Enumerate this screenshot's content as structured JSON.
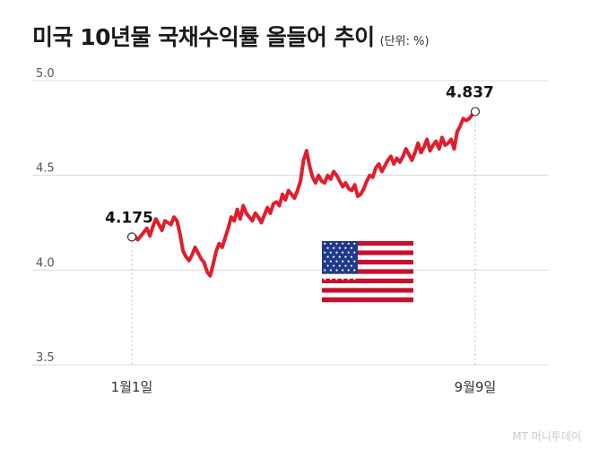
{
  "header": {
    "title": "미국 10년물 국채수익률 올들어 추이",
    "unit": "(단위: %)"
  },
  "credit": "MT 머니투데이",
  "colors": {
    "line": "#e01e2b",
    "grid": "#d9d9d9",
    "guide": "#bdbdbd"
  },
  "chart_data": {
    "type": "line",
    "title": "미국 10년물 국채수익률 올들어 추이",
    "ylim": [
      3.5,
      5.0
    ],
    "yticks": [
      "5.0",
      "4.5",
      "4.0",
      "3.5"
    ],
    "xticks": [
      "1월1일",
      "9월9일"
    ],
    "grid": true,
    "annotations": [
      {
        "label": "4.175",
        "value": 4.175,
        "position": "start"
      },
      {
        "label": "4.837",
        "value": 4.837,
        "position": "end"
      }
    ],
    "series": [
      {
        "values": [
          4.175,
          4.18,
          4.16,
          4.18,
          4.2,
          4.22,
          4.18,
          4.23,
          4.27,
          4.24,
          4.21,
          4.26,
          4.25,
          4.24,
          4.28,
          4.26,
          4.19,
          4.1,
          4.07,
          4.05,
          4.08,
          4.12,
          4.09,
          4.06,
          4.04,
          3.99,
          3.97,
          4.03,
          4.1,
          4.14,
          4.12,
          4.17,
          4.22,
          4.28,
          4.26,
          4.32,
          4.27,
          4.34,
          4.3,
          4.28,
          4.26,
          4.3,
          4.28,
          4.25,
          4.29,
          4.33,
          4.3,
          4.35,
          4.36,
          4.34,
          4.4,
          4.37,
          4.42,
          4.4,
          4.38,
          4.42,
          4.47,
          4.58,
          4.63,
          4.55,
          4.49,
          4.46,
          4.5,
          4.47,
          4.46,
          4.5,
          4.48,
          4.52,
          4.5,
          4.47,
          4.44,
          4.46,
          4.43,
          4.42,
          4.45,
          4.39,
          4.4,
          4.43,
          4.47,
          4.5,
          4.49,
          4.54,
          4.56,
          4.52,
          4.55,
          4.58,
          4.6,
          4.56,
          4.59,
          4.57,
          4.6,
          4.64,
          4.61,
          4.58,
          4.62,
          4.67,
          4.62,
          4.65,
          4.69,
          4.63,
          4.66,
          4.68,
          4.64,
          4.7,
          4.66,
          4.67,
          4.69,
          4.64,
          4.73,
          4.76,
          4.8,
          4.79,
          4.8,
          4.82,
          4.837
        ]
      }
    ]
  }
}
